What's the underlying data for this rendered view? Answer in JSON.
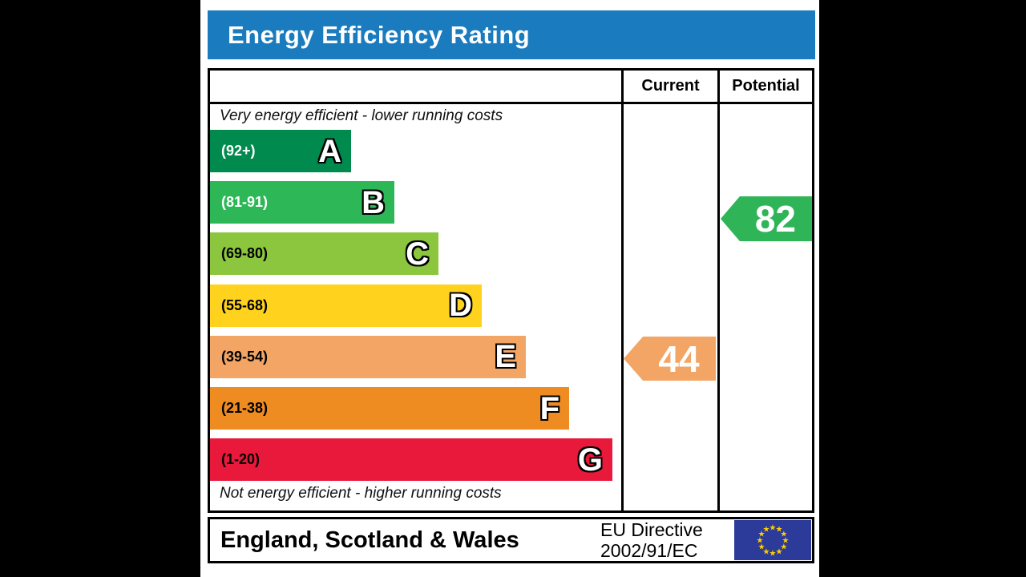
{
  "title": "Energy Efficiency Rating",
  "columns": {
    "current": "Current",
    "potential": "Potential"
  },
  "captions": {
    "top": "Very energy efficient - lower running costs",
    "bottom": "Not energy efficient - higher running costs"
  },
  "chart_data": {
    "type": "bar",
    "title": "Energy Efficiency Rating",
    "bands": [
      {
        "letter": "A",
        "range": "(92+)",
        "min": 92,
        "max": 100,
        "color": "#008a4d",
        "range_text_color": "#ffffff"
      },
      {
        "letter": "B",
        "range": "(81-91)",
        "min": 81,
        "max": 91,
        "color": "#2db757",
        "range_text_color": "#ffffff"
      },
      {
        "letter": "C",
        "range": "(69-80)",
        "min": 69,
        "max": 80,
        "color": "#8bc63e",
        "range_text_color": "#000000"
      },
      {
        "letter": "D",
        "range": "(55-68)",
        "min": 55,
        "max": 68,
        "color": "#ffd21e",
        "range_text_color": "#000000"
      },
      {
        "letter": "E",
        "range": "(39-54)",
        "min": 39,
        "max": 54,
        "color": "#f2a565",
        "range_text_color": "#000000"
      },
      {
        "letter": "F",
        "range": "(21-38)",
        "min": 21,
        "max": 38,
        "color": "#ee8c22",
        "range_text_color": "#000000"
      },
      {
        "letter": "G",
        "range": "(1-20)",
        "min": 1,
        "max": 20,
        "color": "#e9193b",
        "range_text_color": "#000000"
      }
    ],
    "current": {
      "value": 44,
      "band": "E",
      "color": "#f2a565"
    },
    "potential": {
      "value": 82,
      "band": "B",
      "color": "#2fb458"
    }
  },
  "footer": {
    "region": "England, Scotland & Wales",
    "directive_line1": "EU Directive",
    "directive_line2": "2002/91/EC",
    "eu_flag": {
      "background": "#2c3b9a",
      "star_color": "#ffcc00",
      "star_count": 12
    }
  },
  "theme": {
    "header_bg": "#1a7cbf",
    "header_text": "#ffffff",
    "border_color": "#000000"
  }
}
